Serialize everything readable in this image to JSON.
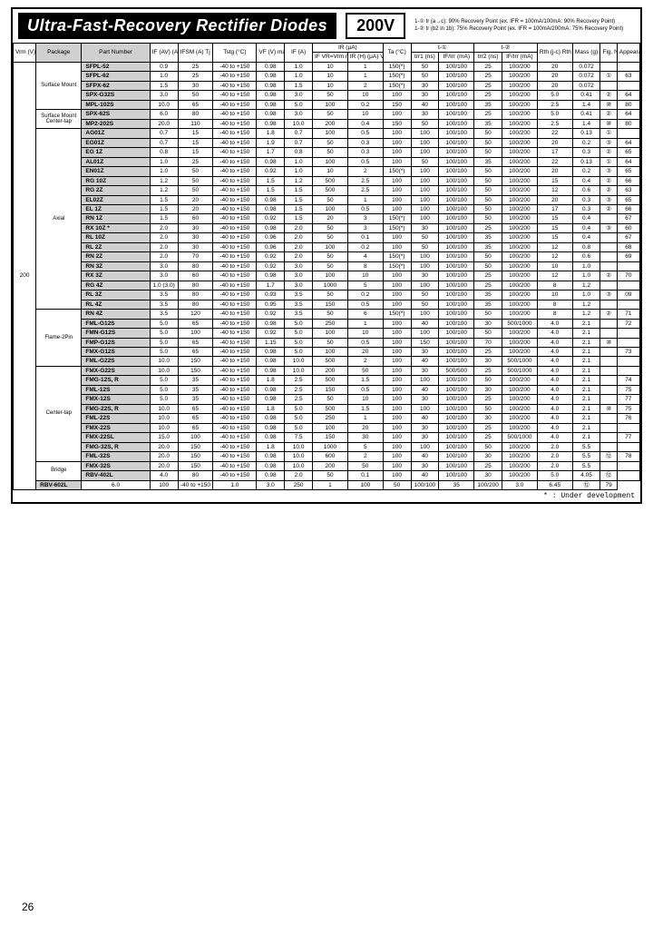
{
  "title": "Ultra-Fast-Recovery Rectifier Diodes",
  "voltage": "200V",
  "notes_line1": "1-① tr (a→c): 90% Recovery Point (ex. IFR = 100mA/100mA: 90% Recovery Point)",
  "notes_line2": "1-② tr (b2 in 1b): 75% Recovery Point (ex. IFR = 100mA/200mA: 75% Recovery Point)",
  "footnote": "* : Under development",
  "page_number": "26",
  "vrm_value": "200",
  "headers": {
    "vrm": "Vrm\n(V)",
    "pkg": "Package",
    "pn": "Part Number",
    "if_av": "IF (AV)\n(A)",
    "ifsm": "IFSM\n(A)\nTj\n50Hz\nsingle sine\npk 1 cyc",
    "tstg": "Tstg\n(°C)",
    "vf": "VF\n(V)\nmax",
    "if": "IF\n(A)",
    "ir_if": "IF\nVR=Vrm\nmax",
    "ir_h": "IR (H)\n(μA)\nVR=Vrm\nmax",
    "ir_ta": "Ta\n(°C)",
    "trr1_ta": "trr1\n(ns)",
    "trr1_if": "IF/Irr\n(mA)",
    "trr2_if": "trr2\n(ns)",
    "trr2_ifr": "IF/Irr\n(mA)",
    "rth_jc": "Rth (j-c)\nRth (j-l)\n(°C/W)",
    "mass": "Mass\n(g)",
    "fig": "Fig.\nNo.",
    "doc": "Appearance\nDimensions"
  },
  "group_a": "t-①",
  "group_b": "t-②",
  "group_ir": "IR\n(μA)",
  "packages": [
    {
      "label": "Surface Mount",
      "span": 5
    },
    {
      "label": "Surface Mount\nCenter-tap",
      "span": 2
    },
    {
      "label": "Axial",
      "span": 19
    },
    {
      "label": "Flame-2Pin",
      "span": 6
    },
    {
      "label": "Center-tap",
      "span": 10
    },
    {
      "label": "Bridge",
      "span": 2
    }
  ],
  "rows": [
    [
      "SFPL-52",
      "0.9",
      "25",
      "-40 to +150",
      "0.98",
      "1.0",
      "10",
      "1",
      "150(*)",
      "50",
      "100/100",
      "25",
      "100/200",
      "20",
      "0.072",
      "",
      ""
    ],
    [
      "SFPL-62",
      "1.0",
      "25",
      "-40 to +150",
      "0.98",
      "1.0",
      "10",
      "1",
      "150(*)",
      "50",
      "100/100",
      "25",
      "100/200",
      "20",
      "0.072",
      "①",
      "63"
    ],
    [
      "SFPX-62",
      "1.5",
      "30",
      "-40 to +150",
      "0.98",
      "1.5",
      "10",
      "2",
      "150(*)",
      "30",
      "100/100",
      "25",
      "100/200",
      "20",
      "0.072",
      "",
      ""
    ],
    [
      "SPX-G32S",
      "3.0",
      "50",
      "-40 to +150",
      "0.98",
      "3.0",
      "50",
      "10",
      "100",
      "30",
      "100/100",
      "25",
      "100/200",
      "5.0",
      "0.41",
      "②",
      "64"
    ],
    [
      "MPL-102S",
      "10.0",
      "65",
      "-40 to +150",
      "0.98",
      "5.0",
      "100",
      "0.2",
      "150",
      "40",
      "100/100",
      "35",
      "100/200",
      "2.5",
      "1.4",
      "⑩",
      "80"
    ],
    [
      "SPX-62S",
      "6.0",
      "80",
      "-40 to +150",
      "0.98",
      "3.0",
      "50",
      "10",
      "100",
      "30",
      "100/100",
      "25",
      "100/200",
      "5.0",
      "0.41",
      "②",
      "64"
    ],
    [
      "MP2-202S",
      "20.0",
      "110",
      "-40 to +150",
      "0.98",
      "10.0",
      "200",
      "0.4",
      "150",
      "50",
      "100/100",
      "35",
      "100/200",
      "2.5",
      "1.4",
      "⑩",
      "80"
    ],
    [
      "AG01Z",
      "0.7",
      "15",
      "-40 to +150",
      "1.8",
      "0.7",
      "100",
      "0.5",
      "100",
      "100",
      "100/100",
      "50",
      "100/200",
      "22",
      "0.13",
      "①",
      ""
    ],
    [
      "EG01Z",
      "0.7",
      "15",
      "-40 to +150",
      "1.9",
      "0.7",
      "50",
      "0.3",
      "100",
      "100",
      "100/100",
      "50",
      "100/200",
      "20",
      "0.2",
      "③",
      "64"
    ],
    [
      "EG 1Z",
      "0.8",
      "15",
      "-40 to +150",
      "1.7",
      "0.8",
      "50",
      "0.3",
      "100",
      "100",
      "100/100",
      "50",
      "100/200",
      "17",
      "0.3",
      "②",
      "65"
    ],
    [
      "AL01Z",
      "1.0",
      "25",
      "-40 to +150",
      "0.98",
      "1.0",
      "100",
      "0.5",
      "100",
      "50",
      "100/100",
      "35",
      "100/200",
      "22",
      "0.13",
      "①",
      "64"
    ],
    [
      "EN01Z",
      "1.0",
      "50",
      "-40 to +150",
      "0.92",
      "1.0",
      "10",
      "2",
      "150(*)",
      "100",
      "100/100",
      "50",
      "100/200",
      "20",
      "0.2",
      "③",
      "65"
    ],
    [
      "RG 10Z",
      "1.2",
      "50",
      "-40 to +150",
      "1.5",
      "1.2",
      "500",
      "2.5",
      "100",
      "100",
      "100/100",
      "50",
      "100/200",
      "15",
      "0.4",
      "②",
      "66"
    ],
    [
      "RG 2Z",
      "1.2",
      "50",
      "-40 to +150",
      "1.5",
      "1.5",
      "500",
      "2.5",
      "100",
      "100",
      "100/100",
      "50",
      "100/200",
      "12",
      "0.6",
      "②",
      "63"
    ],
    [
      "EL02Z",
      "1.5",
      "20",
      "-40 to +150",
      "0.98",
      "1.5",
      "50",
      "1",
      "100",
      "100",
      "100/100",
      "50",
      "100/200",
      "20",
      "0.3",
      "③",
      "65"
    ],
    [
      "EL 1Z",
      "1.5",
      "20",
      "-40 to +150",
      "0.98",
      "1.5",
      "100",
      "0.5",
      "100",
      "100",
      "100/100",
      "50",
      "100/200",
      "17",
      "0.3",
      "②",
      "66"
    ],
    [
      "RN 1Z",
      "1.5",
      "60",
      "-40 to +150",
      "0.92",
      "1.5",
      "20",
      "3",
      "150(*)",
      "100",
      "100/100",
      "50",
      "100/200",
      "15",
      "0.4",
      "",
      "67"
    ],
    [
      "RX 10Z *",
      "2.0",
      "30",
      "-40 to +150",
      "0.98",
      "2.0",
      "50",
      "3",
      "150(*)",
      "30",
      "100/100",
      "25",
      "100/200",
      "15",
      "0.4",
      "③",
      "60"
    ],
    [
      "RL 10Z",
      "2.0",
      "30",
      "-40 to +150",
      "0.96",
      "2.0",
      "50",
      "0.1",
      "100",
      "50",
      "100/100",
      "35",
      "100/200",
      "15",
      "0.4",
      "",
      "67"
    ],
    [
      "RL 2Z",
      "2.0",
      "30",
      "-40 to +150",
      "0.96",
      "2.0",
      "100",
      "0.2",
      "100",
      "50",
      "100/100",
      "35",
      "100/200",
      "12",
      "0.8",
      "",
      "68"
    ],
    [
      "RN 2Z",
      "2.0",
      "70",
      "-40 to +150",
      "0.92",
      "2.0",
      "50",
      "4",
      "150(*)",
      "100",
      "100/100",
      "50",
      "100/200",
      "12",
      "0.6",
      "",
      "69"
    ],
    [
      "RN 3Z",
      "3.0",
      "80",
      "-40 to +150",
      "0.92",
      "3.0",
      "50",
      "8",
      "150(*)",
      "100",
      "100/100",
      "50",
      "100/200",
      "10",
      "1.0",
      "",
      ""
    ],
    [
      "RX 3Z",
      "3.0",
      "60",
      "-40 to +150",
      "0.98",
      "3.0",
      "100",
      "10",
      "100",
      "30",
      "100/100",
      "25",
      "100/200",
      "12",
      "1.0",
      "②",
      "70"
    ],
    [
      "RG 4Z",
      "1.0 (3.0)",
      "80",
      "-40 to +150",
      "1.7",
      "3.0",
      "1000",
      "5",
      "100",
      "100",
      "100/100",
      "25",
      "100/200",
      "8",
      "1.2",
      "",
      ""
    ],
    [
      "RL 3Z",
      "3.5",
      "80",
      "-40 to +150",
      "0.93",
      "3.5",
      "50",
      "0.2",
      "100",
      "50",
      "100/100",
      "35",
      "100/200",
      "10",
      "1.0",
      "③",
      "09"
    ],
    [
      "RL 4Z",
      "3.5",
      "80",
      "-40 to +150",
      "0.95",
      "3.5",
      "150",
      "0.5",
      "100",
      "50",
      "100/100",
      "35",
      "100/200",
      "8",
      "1.2",
      "",
      ""
    ],
    [
      "RN 4Z",
      "3.5",
      "120",
      "-40 to +150",
      "0.92",
      "3.5",
      "50",
      "6",
      "150(*)",
      "100",
      "100/100",
      "50",
      "100/200",
      "8",
      "1.2",
      "②",
      "71"
    ],
    [
      "FML-G12S",
      "5.0",
      "65",
      "-40 to +150",
      "0.98",
      "5.0",
      "250",
      "1",
      "100",
      "40",
      "100/100",
      "30",
      "500/1000",
      "4.0",
      "2.1",
      "",
      "72"
    ],
    [
      "FMN-G12S",
      "5.0",
      "100",
      "-40 to +150",
      "0.92",
      "5.0",
      "100",
      "10",
      "100",
      "100",
      "100/100",
      "50",
      "100/200",
      "4.0",
      "2.1",
      "",
      ""
    ],
    [
      "FMP-G12S",
      "5.0",
      "65",
      "-40 to +150",
      "1.15",
      "5.0",
      "50",
      "0.5",
      "100",
      "150",
      "100/100",
      "70",
      "100/200",
      "4.0",
      "2.1",
      "⑩",
      ""
    ],
    [
      "FMX-G12S",
      "5.0",
      "65",
      "-40 to +150",
      "0.98",
      "5.0",
      "100",
      "20",
      "100",
      "30",
      "100/100",
      "25",
      "100/200",
      "4.0",
      "2.1",
      "",
      "73"
    ],
    [
      "FML-G22S",
      "10.0",
      "150",
      "-40 to +150",
      "0.98",
      "10.0",
      "500",
      "2",
      "100",
      "40",
      "100/100",
      "30",
      "500/1000",
      "4.0",
      "2.1",
      "",
      ""
    ],
    [
      "FMX-G22S",
      "10.0",
      "150",
      "-40 to +150",
      "0.98",
      "10.0",
      "200",
      "50",
      "100",
      "30",
      "500/500",
      "25",
      "500/1000",
      "4.0",
      "2.1",
      "",
      ""
    ],
    [
      "FMG-12S, R",
      "5.0",
      "35",
      "-40 to +150",
      "1.8",
      "2.5",
      "500",
      "1.5",
      "100",
      "100",
      "100/100",
      "50",
      "100/200",
      "4.0",
      "2.1",
      "",
      "74"
    ],
    [
      "FML-12S",
      "5.0",
      "35",
      "-40 to +150",
      "0.98",
      "2.5",
      "150",
      "0.5",
      "100",
      "40",
      "100/100",
      "30",
      "100/200",
      "4.0",
      "2.1",
      "",
      "75"
    ],
    [
      "FMX-12S",
      "5.0",
      "35",
      "-40 to +150",
      "0.98",
      "2.5",
      "50",
      "10",
      "100",
      "30",
      "100/100",
      "25",
      "100/200",
      "4.0",
      "2.1",
      "",
      "77"
    ],
    [
      "FMG-22S, R",
      "10.0",
      "65",
      "-40 to +150",
      "1.8",
      "5.0",
      "500",
      "1.5",
      "100",
      "100",
      "100/100",
      "50",
      "100/200",
      "4.0",
      "2.1",
      "⑩",
      "75"
    ],
    [
      "FML-22S",
      "10.0",
      "65",
      "-40 to +150",
      "0.98",
      "5.0",
      "250",
      "1",
      "100",
      "40",
      "100/100",
      "30",
      "100/200",
      "4.0",
      "2.1",
      "",
      "76"
    ],
    [
      "FMX-22S",
      "10.0",
      "65",
      "-40 to +150",
      "0.98",
      "5.0",
      "100",
      "20",
      "100",
      "30",
      "100/100",
      "25",
      "100/200",
      "4.0",
      "2.1",
      "",
      ""
    ],
    [
      "FMX-22SL",
      "15.0",
      "100",
      "-40 to +150",
      "0.98",
      "7.5",
      "150",
      "30",
      "100",
      "30",
      "100/100",
      "25",
      "500/1000",
      "4.0",
      "2.1",
      "",
      "77"
    ],
    [
      "FMG-32S, R",
      "20.0",
      "150",
      "-40 to +150",
      "1.8",
      "10.0",
      "1000",
      "5",
      "100",
      "100",
      "100/100",
      "50",
      "100/200",
      "2.0",
      "5.5",
      "",
      ""
    ],
    [
      "FML-32S",
      "20.0",
      "150",
      "-40 to +150",
      "0.98",
      "10.0",
      "600",
      "2",
      "100",
      "40",
      "100/100",
      "30",
      "100/200",
      "2.0",
      "5.5",
      "⑫",
      "78"
    ],
    [
      "FMX-32S",
      "20.0",
      "150",
      "-40 to +150",
      "0.98",
      "10.0",
      "200",
      "50",
      "100",
      "30",
      "100/100",
      "25",
      "100/200",
      "2.0",
      "5.5",
      "",
      ""
    ],
    [
      "RBV-402L",
      "4.0",
      "80",
      "-40 to +150",
      "0.98",
      "2.0",
      "50",
      "0.1",
      "100",
      "40",
      "100/100",
      "30",
      "100/200",
      "5.0",
      "4.05",
      "⑫",
      ""
    ],
    [
      "RBV-602L",
      "6.0",
      "100",
      "-40 to +150",
      "1.0",
      "3.0",
      "250",
      "1",
      "100",
      "50",
      "100/100",
      "35",
      "100/200",
      "3.0",
      "6.45",
      "⑫",
      "79"
    ]
  ]
}
